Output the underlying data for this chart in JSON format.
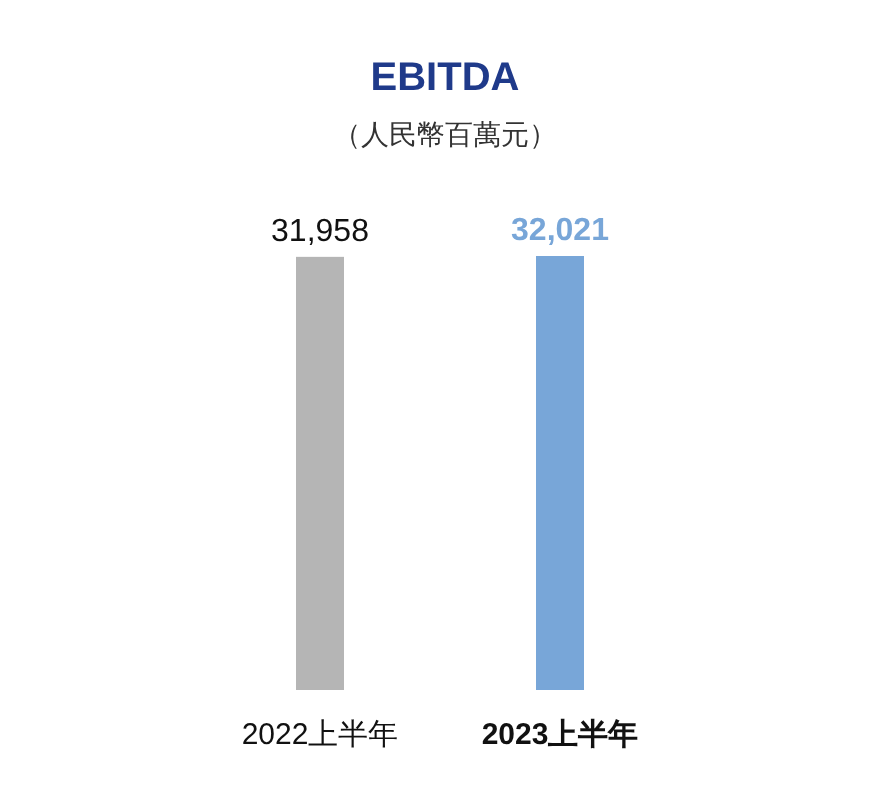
{
  "chart_data": {
    "type": "bar",
    "title": "EBITDA",
    "subtitle": "（人民幣百萬元）",
    "categories": [
      "2022上半年",
      "2023上半年"
    ],
    "values": [
      31958,
      32021
    ],
    "colors": [
      "#b5b5b5",
      "#78a6d8"
    ],
    "value_labels": [
      "31,958",
      "32,021"
    ]
  }
}
